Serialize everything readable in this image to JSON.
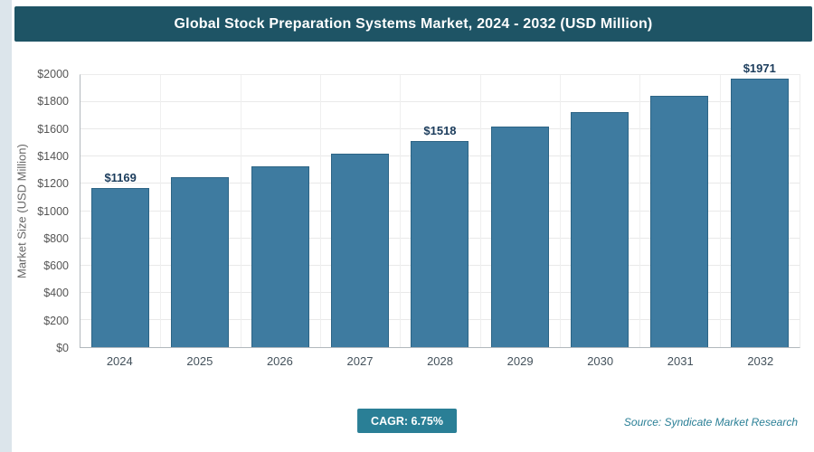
{
  "page": {
    "title": "Global Stock Preparation Systems Market, 2024 - 2032 (USD Million)",
    "footer": {
      "cagr_label": "CAGR: 6.75%",
      "source": "Source: Syndicate Market Research"
    }
  },
  "chart_data": {
    "type": "bar",
    "title": "Global Stock Preparation Systems Market, 2024 - 2032 (USD Million)",
    "categories": [
      "2024",
      "2025",
      "2026",
      "2027",
      "2028",
      "2029",
      "2030",
      "2031",
      "2032"
    ],
    "values": [
      1169,
      1248,
      1332,
      1422,
      1518,
      1621,
      1730,
      1847,
      1971
    ],
    "bar_labels": [
      "$1169",
      "",
      "",
      "",
      "$1518",
      "",
      "",
      "",
      "$1971"
    ],
    "xlabel": "",
    "ylabel": "Market Size (USD Million)",
    "ylim": [
      0,
      2000
    ],
    "ytick_step": 200,
    "yticks": [
      "$0",
      "$200",
      "$400",
      "$600",
      "$800",
      "$1000",
      "$1200",
      "$1400",
      "$1600",
      "$1800",
      "$2000"
    ],
    "grid": true,
    "legend_position": "none",
    "annotations": [
      "CAGR: 6.75%"
    ],
    "colors": {
      "bar": "#3e7ba0",
      "bar_border": "#2d6485",
      "header_bg": "#1e5465",
      "badge_bg": "#2a7f96",
      "source_text": "#2a7f96",
      "label_text": "#1b3c5c"
    }
  }
}
